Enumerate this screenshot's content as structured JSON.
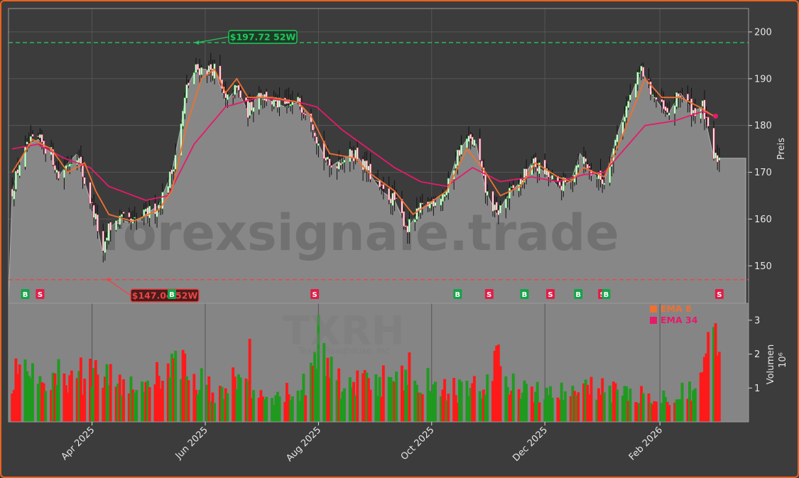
{
  "chart_data": [
    {
      "type": "candlestick",
      "title": "",
      "ylabel": "Preis",
      "ylim": [
        142,
        205
      ],
      "yticks": [
        150,
        160,
        170,
        180,
        190,
        200
      ],
      "grid": true,
      "xlim": [
        "2025-02-15",
        "2026-03-20"
      ],
      "xticks": [
        {
          "date": "2025-04-01",
          "label": "Apr 2025"
        },
        {
          "date": "2025-06-01",
          "label": "Jun 2025"
        },
        {
          "date": "2025-08-01",
          "label": "Aug 2025"
        },
        {
          "date": "2025-10-01",
          "label": "Oct 2025"
        },
        {
          "date": "2025-12-01",
          "label": "Dec 2025"
        },
        {
          "date": "2026-02-01",
          "label": "Feb 2026"
        }
      ],
      "watermark": "forexsignale.trade",
      "close_path": [
        [
          "2025-02-17",
          166
        ],
        [
          "2025-02-21",
          172
        ],
        [
          "2025-02-26",
          176
        ],
        [
          "2025-03-03",
          177
        ],
        [
          "2025-03-10",
          174
        ],
        [
          "2025-03-14",
          169
        ],
        [
          "2025-03-19",
          172
        ],
        [
          "2025-03-24",
          174
        ],
        [
          "2025-03-28",
          168
        ],
        [
          "2025-04-03",
          160
        ],
        [
          "2025-04-07",
          152
        ],
        [
          "2025-04-10",
          158
        ],
        [
          "2025-04-16",
          160
        ],
        [
          "2025-04-23",
          159
        ],
        [
          "2025-04-30",
          161
        ],
        [
          "2025-05-07",
          163
        ],
        [
          "2025-05-14",
          170
        ],
        [
          "2025-05-19",
          180
        ],
        [
          "2025-05-22",
          188
        ],
        [
          "2025-05-27",
          192
        ],
        [
          "2025-06-02",
          192
        ],
        [
          "2025-06-06",
          192
        ],
        [
          "2025-06-12",
          185
        ],
        [
          "2025-06-18",
          188
        ],
        [
          "2025-06-24",
          183
        ],
        [
          "2025-06-30",
          187
        ],
        [
          "2025-07-07",
          185
        ],
        [
          "2025-07-14",
          184
        ],
        [
          "2025-07-21",
          185
        ],
        [
          "2025-07-28",
          182
        ],
        [
          "2025-08-01",
          176
        ],
        [
          "2025-08-07",
          171
        ],
        [
          "2025-08-14",
          173
        ],
        [
          "2025-08-21",
          174
        ],
        [
          "2025-08-28",
          170
        ],
        [
          "2025-09-04",
          166
        ],
        [
          "2025-09-11",
          164
        ],
        [
          "2025-09-18",
          158
        ],
        [
          "2025-09-25",
          162
        ],
        [
          "2025-10-02",
          164
        ],
        [
          "2025-10-09",
          166
        ],
        [
          "2025-10-15",
          174
        ],
        [
          "2025-10-20",
          177
        ],
        [
          "2025-10-25",
          176
        ],
        [
          "2025-10-30",
          166
        ],
        [
          "2025-11-05",
          161
        ],
        [
          "2025-11-11",
          165
        ],
        [
          "2025-11-18",
          168
        ],
        [
          "2025-11-24",
          172
        ],
        [
          "2025-12-01",
          170
        ],
        [
          "2025-12-08",
          167
        ],
        [
          "2025-12-15",
          168
        ],
        [
          "2025-12-20",
          174
        ],
        [
          "2025-12-26",
          170
        ],
        [
          "2026-01-02",
          168
        ],
        [
          "2026-01-09",
          178
        ],
        [
          "2026-01-15",
          185
        ],
        [
          "2026-01-22",
          192
        ],
        [
          "2026-01-29",
          186
        ],
        [
          "2026-02-05",
          182
        ],
        [
          "2026-02-12",
          187
        ],
        [
          "2026-02-19",
          183
        ],
        [
          "2026-02-24",
          184
        ],
        [
          "2026-03-02",
          173
        ],
        [
          "2026-03-05",
          173
        ]
      ],
      "ema_fast_path": [
        [
          "2025-02-17",
          170
        ],
        [
          "2025-02-28",
          177
        ],
        [
          "2025-03-10",
          175
        ],
        [
          "2025-03-19",
          170
        ],
        [
          "2025-03-28",
          172
        ],
        [
          "2025-04-03",
          166
        ],
        [
          "2025-04-10",
          161
        ],
        [
          "2025-04-23",
          159.5
        ],
        [
          "2025-05-07",
          162
        ],
        [
          "2025-05-14",
          166
        ],
        [
          "2025-05-22",
          180
        ],
        [
          "2025-05-30",
          190
        ],
        [
          "2025-06-06",
          192
        ],
        [
          "2025-06-12",
          187
        ],
        [
          "2025-06-18",
          190
        ],
        [
          "2025-06-24",
          186
        ],
        [
          "2025-07-07",
          186
        ],
        [
          "2025-07-21",
          185
        ],
        [
          "2025-07-28",
          182
        ],
        [
          "2025-08-07",
          174
        ],
        [
          "2025-08-21",
          173
        ],
        [
          "2025-08-28",
          170
        ],
        [
          "2025-09-11",
          166
        ],
        [
          "2025-09-21",
          161
        ],
        [
          "2025-10-02",
          164
        ],
        [
          "2025-10-09",
          166
        ],
        [
          "2025-10-20",
          175
        ],
        [
          "2025-10-30",
          170
        ],
        [
          "2025-11-07",
          165
        ],
        [
          "2025-11-18",
          167
        ],
        [
          "2025-11-26",
          172
        ],
        [
          "2025-12-08",
          169
        ],
        [
          "2025-12-15",
          168
        ],
        [
          "2025-12-22",
          171
        ],
        [
          "2026-01-02",
          169
        ],
        [
          "2026-01-12",
          178
        ],
        [
          "2026-01-24",
          190
        ],
        [
          "2026-02-02",
          186
        ],
        [
          "2026-02-12",
          186
        ],
        [
          "2026-02-22",
          184
        ],
        [
          "2026-03-02",
          182
        ]
      ],
      "ema_slow_path": [
        [
          "2025-02-17",
          175
        ],
        [
          "2025-03-03",
          176
        ],
        [
          "2025-03-17",
          173
        ],
        [
          "2025-03-31",
          171
        ],
        [
          "2025-04-10",
          167
        ],
        [
          "2025-04-30",
          164
        ],
        [
          "2025-05-12",
          165
        ],
        [
          "2025-05-26",
          176
        ],
        [
          "2025-06-12",
          184
        ],
        [
          "2025-06-30",
          186
        ],
        [
          "2025-07-21",
          185
        ],
        [
          "2025-07-31",
          184
        ],
        [
          "2025-08-14",
          179
        ],
        [
          "2025-08-28",
          175
        ],
        [
          "2025-09-11",
          171
        ],
        [
          "2025-09-25",
          168
        ],
        [
          "2025-10-09",
          167
        ],
        [
          "2025-10-23",
          171
        ],
        [
          "2025-11-07",
          168
        ],
        [
          "2025-11-24",
          169
        ],
        [
          "2025-12-08",
          168
        ],
        [
          "2025-12-22",
          169.5
        ],
        [
          "2026-01-02",
          170
        ],
        [
          "2026-01-24",
          180
        ],
        [
          "2026-02-09",
          181
        ],
        [
          "2026-02-24",
          183
        ],
        [
          "2026-03-03",
          182
        ]
      ],
      "high_52w": {
        "label": "$197.72 52W",
        "value": 197.72,
        "date": "2025-05-26"
      },
      "low_52w": {
        "label": "$147.04 52W",
        "value": 147.04,
        "date": "2025-04-08"
      },
      "signals": [
        {
          "type": "B",
          "date": "2025-02-24"
        },
        {
          "type": "S",
          "date": "2025-03-04"
        },
        {
          "type": "B",
          "date": "2025-05-14"
        },
        {
          "type": "S",
          "date": "2025-07-30"
        },
        {
          "type": "B",
          "date": "2025-10-15"
        },
        {
          "type": "S",
          "date": "2025-11-01"
        },
        {
          "type": "B",
          "date": "2025-11-20"
        },
        {
          "type": "S",
          "date": "2025-12-04"
        },
        {
          "type": "B",
          "date": "2025-12-19"
        },
        {
          "type": "S",
          "date": "2026-01-01"
        },
        {
          "type": "B",
          "date": "2026-01-03"
        },
        {
          "type": "S",
          "date": "2026-03-05"
        }
      ],
      "colors": {
        "up": "#1f9a1f",
        "down": "#ff1a1a",
        "ema_fast": "#f07030",
        "ema_slow": "#e8196a",
        "high": "#22c55e",
        "low": "#ef4444",
        "area": "#878787"
      }
    },
    {
      "type": "bar",
      "ylabel": "Volumen",
      "yunit": "10⁶",
      "ylim": [
        0,
        3.5
      ],
      "yticks": [
        1,
        2,
        3
      ],
      "ticker": "TXRH",
      "company": "Texas Roadhouse, Inc",
      "legend": [
        {
          "name": "EMA 8",
          "color": "#f07030"
        },
        {
          "name": "EMA 34",
          "color": "#e8196a"
        }
      ],
      "volume_path": [
        [
          "2025-02-15",
          1.4
        ],
        [
          "2025-02-28",
          1.3
        ],
        [
          "2025-03-15",
          1.0
        ],
        [
          "2025-03-31",
          1.4
        ],
        [
          "2025-04-08",
          1.6
        ],
        [
          "2025-04-20",
          1.1
        ],
        [
          "2025-05-05",
          1.3
        ],
        [
          "2025-05-20",
          1.7
        ],
        [
          "2025-06-05",
          0.9
        ],
        [
          "2025-06-20",
          1.3
        ],
        [
          "2025-07-05",
          0.8
        ],
        [
          "2025-07-20",
          0.9
        ],
        [
          "2025-08-03",
          1.8
        ],
        [
          "2025-08-15",
          1.0
        ],
        [
          "2025-08-30",
          1.2
        ],
        [
          "2025-09-15",
          1.2
        ],
        [
          "2025-09-30",
          1.2
        ],
        [
          "2025-10-15",
          0.9
        ],
        [
          "2025-10-30",
          1.1
        ],
        [
          "2025-11-05",
          1.7
        ],
        [
          "2025-11-20",
          0.9
        ],
        [
          "2025-12-05",
          0.8
        ],
        [
          "2025-12-20",
          1.0
        ],
        [
          "2026-01-05",
          0.9
        ],
        [
          "2026-01-20",
          0.9
        ],
        [
          "2026-02-05",
          0.8
        ],
        [
          "2026-02-20",
          1.0
        ],
        [
          "2026-03-01",
          2.2
        ]
      ],
      "volume_spikes": [
        {
          "date": "2025-02-16",
          "value": 2.65
        },
        {
          "date": "2025-03-14",
          "value": 1.85
        },
        {
          "date": "2025-03-26",
          "value": 1.9
        },
        {
          "date": "2025-05-16",
          "value": 2.1
        },
        {
          "date": "2025-06-25",
          "value": 2.45
        },
        {
          "date": "2025-08-01",
          "value": 3.15
        },
        {
          "date": "2025-09-19",
          "value": 2.05
        },
        {
          "date": "2025-11-08",
          "value": 2.55
        },
        {
          "date": "2026-03-02",
          "value": 2.8
        }
      ]
    }
  ]
}
